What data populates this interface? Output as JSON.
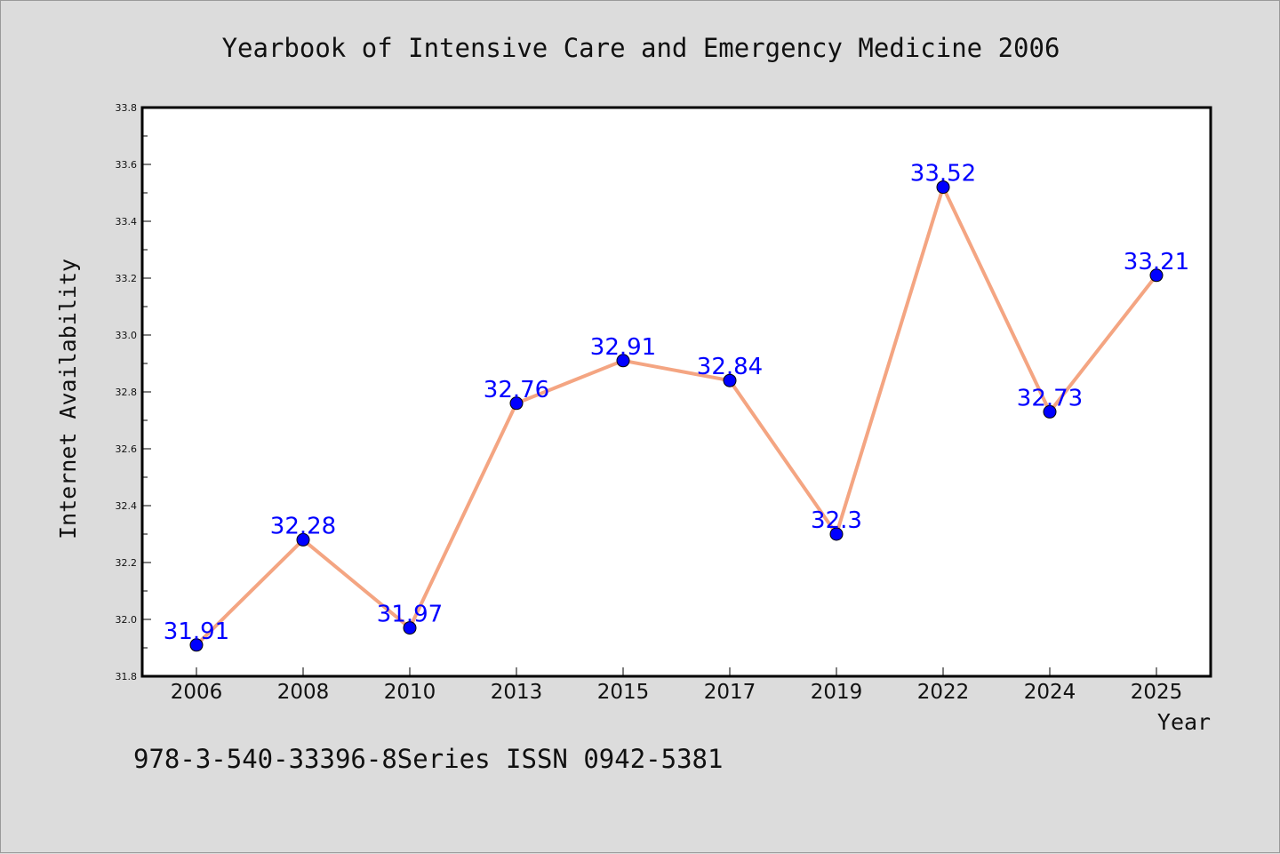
{
  "chart_data": {
    "type": "line",
    "title": "Yearbook of Intensive Care and Emergency Medicine 2006",
    "xlabel": "Year",
    "ylabel": "Internet Availability",
    "categories": [
      "2006",
      "2008",
      "2010",
      "2013",
      "2015",
      "2017",
      "2019",
      "2022",
      "2024",
      "2025"
    ],
    "series": [
      {
        "values": [
          31.91,
          32.28,
          31.97,
          32.76,
          32.91,
          32.84,
          32.3,
          33.52,
          32.73,
          33.21
        ],
        "data_labels": [
          "31.91",
          "32.28",
          "31.97",
          "32.76",
          "32.91",
          "32.84",
          "32.3",
          "33.52",
          "32.73",
          "33.21"
        ],
        "line_color": "#f4a582",
        "marker_color": "#0000ff"
      }
    ],
    "ylim": [
      31.8,
      33.8
    ],
    "yticks": [
      "31.8",
      "32.0",
      "32.2",
      "32.4",
      "32.6",
      "32.8",
      "33.0",
      "33.2",
      "33.4",
      "33.6",
      "33.8"
    ],
    "grid": false,
    "legend": "none",
    "background_color": "#dcdcdc",
    "plot_background_color": "#ffffff",
    "label_color": "#0000ff"
  },
  "footer": {
    "text": "978-3-540-33396-8Series ISSN 0942-5381"
  }
}
